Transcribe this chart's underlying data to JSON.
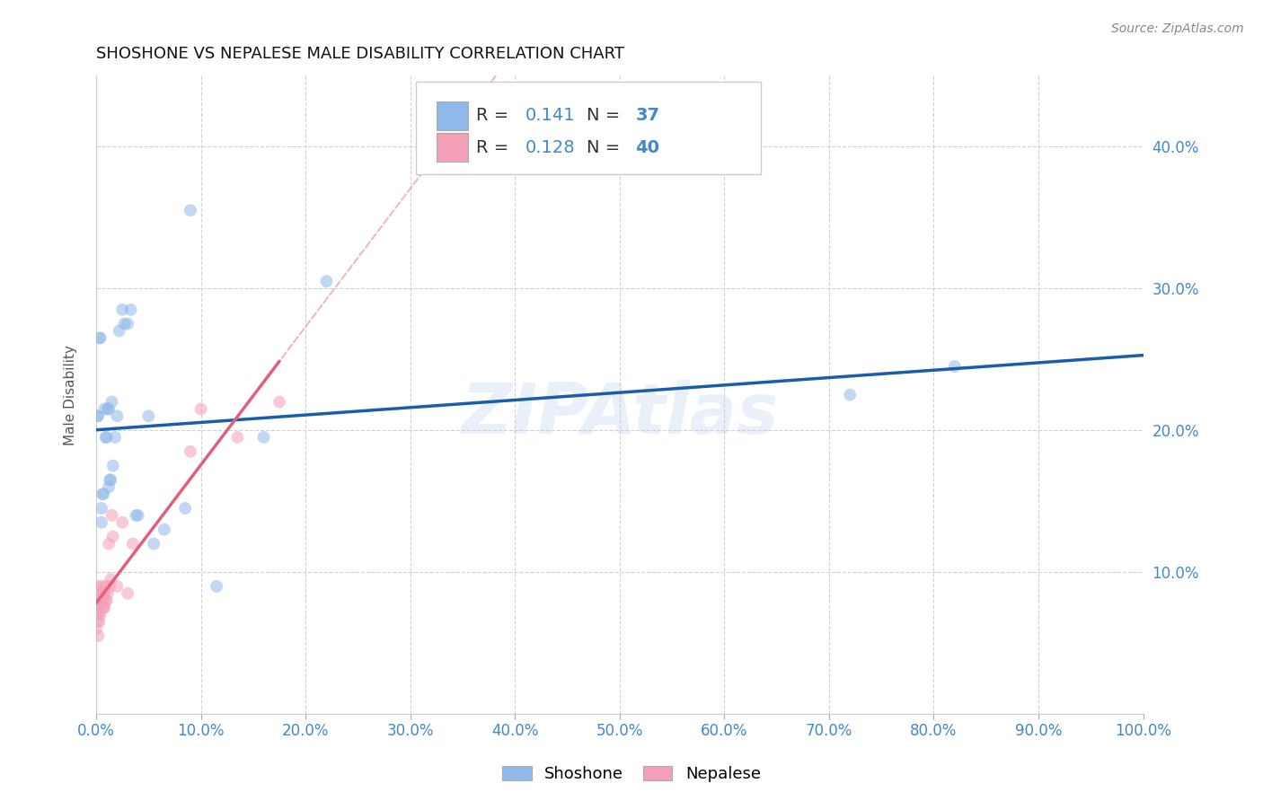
{
  "title": "SHOSHONE VS NEPALESE MALE DISABILITY CORRELATION CHART",
  "source": "Source: ZipAtlas.com",
  "xlabel": "",
  "ylabel": "Male Disability",
  "watermark": "ZIPAtlas",
  "shoshone_R": 0.141,
  "shoshone_N": 37,
  "nepalese_R": 0.128,
  "nepalese_N": 40,
  "shoshone_color": "#90b8e8",
  "shoshone_line_color": "#1a5dab",
  "nepalese_color": "#f4a0b8",
  "nepalese_line_color": "#e0607a",
  "nepalese_dashed_color": "#e8a0b8",
  "grid_color": "#cccccc",
  "shoshone_x": [
    0.001,
    0.002,
    0.003,
    0.004,
    0.005,
    0.006,
    0.007,
    0.008,
    0.009,
    0.01,
    0.011,
    0.012,
    0.013,
    0.014,
    0.015,
    0.016,
    0.018,
    0.02,
    0.022,
    0.025,
    0.027,
    0.03,
    0.033,
    0.038,
    0.04,
    0.05,
    0.055,
    0.065,
    0.085,
    0.09,
    0.115,
    0.16,
    0.22,
    0.72,
    0.82,
    0.005,
    0.012
  ],
  "shoshone_y": [
    0.21,
    0.21,
    0.265,
    0.265,
    0.135,
    0.155,
    0.155,
    0.215,
    0.195,
    0.195,
    0.215,
    0.215,
    0.165,
    0.165,
    0.22,
    0.175,
    0.195,
    0.21,
    0.27,
    0.285,
    0.275,
    0.275,
    0.285,
    0.14,
    0.14,
    0.21,
    0.12,
    0.13,
    0.145,
    0.355,
    0.09,
    0.195,
    0.305,
    0.225,
    0.245,
    0.145,
    0.16
  ],
  "nepalese_x": [
    0.0,
    0.0,
    0.0,
    0.001,
    0.001,
    0.001,
    0.001,
    0.002,
    0.002,
    0.002,
    0.003,
    0.003,
    0.003,
    0.004,
    0.004,
    0.005,
    0.005,
    0.006,
    0.006,
    0.007,
    0.007,
    0.008,
    0.008,
    0.009,
    0.009,
    0.01,
    0.011,
    0.012,
    0.013,
    0.014,
    0.015,
    0.016,
    0.02,
    0.025,
    0.03,
    0.035,
    0.09,
    0.1,
    0.135,
    0.175
  ],
  "nepalese_y": [
    0.06,
    0.07,
    0.08,
    0.065,
    0.075,
    0.08,
    0.09,
    0.055,
    0.07,
    0.085,
    0.065,
    0.075,
    0.085,
    0.07,
    0.085,
    0.08,
    0.09,
    0.075,
    0.08,
    0.075,
    0.085,
    0.075,
    0.085,
    0.08,
    0.09,
    0.08,
    0.085,
    0.12,
    0.09,
    0.095,
    0.14,
    0.125,
    0.09,
    0.135,
    0.085,
    0.12,
    0.185,
    0.215,
    0.195,
    0.22
  ],
  "xlim": [
    0.0,
    1.0
  ],
  "ylim": [
    0.0,
    0.45
  ],
  "xticks": [
    0.0,
    0.1,
    0.2,
    0.3,
    0.4,
    0.5,
    0.6,
    0.7,
    0.8,
    0.9,
    1.0
  ],
  "yticks": [
    0.0,
    0.1,
    0.2,
    0.3,
    0.4
  ],
  "xticklabels": [
    "0.0%",
    "10.0%",
    "20.0%",
    "30.0%",
    "40.0%",
    "50.0%",
    "60.0%",
    "70.0%",
    "80.0%",
    "90.0%",
    "100.0%"
  ],
  "right_yticklabels": [
    "",
    "10.0%",
    "20.0%",
    "30.0%",
    "40.0%"
  ],
  "marker_size": 100,
  "marker_alpha": 0.55,
  "legend_fontsize": 15,
  "title_fontsize": 13,
  "tick_fontsize": 12
}
